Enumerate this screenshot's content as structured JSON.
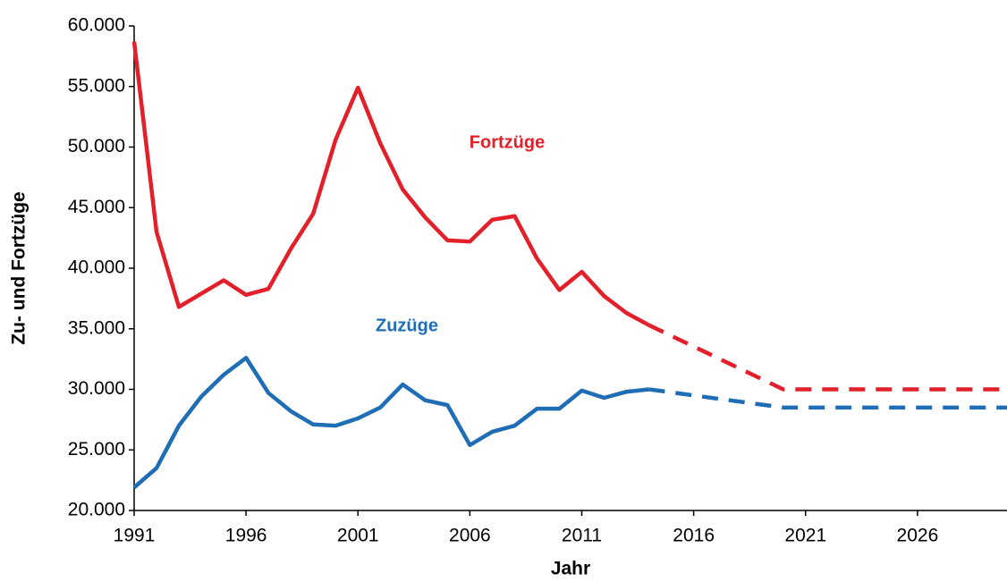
{
  "chart_data": {
    "type": "line",
    "x": [
      1991,
      1992,
      1993,
      1994,
      1995,
      1996,
      1997,
      1998,
      1999,
      2000,
      2001,
      2002,
      2003,
      2004,
      2005,
      2006,
      2007,
      2008,
      2009,
      2010,
      2011,
      2012,
      2013,
      2014,
      2020,
      2030
    ],
    "series": [
      {
        "name": "Fortzüge",
        "color": "#e3202a",
        "values": [
          58700,
          43000,
          36800,
          37900,
          39000,
          37800,
          38300,
          41600,
          44500,
          50600,
          54900,
          50300,
          46500,
          44200,
          42300,
          42200,
          44000,
          44300,
          40800,
          38200,
          39700,
          37700,
          36300,
          35300,
          30000,
          30000
        ]
      },
      {
        "name": "Zuzüge",
        "color": "#1f6db5",
        "values": [
          21900,
          23500,
          27000,
          29400,
          31200,
          32600,
          29700,
          28200,
          27100,
          27000,
          27600,
          28500,
          30400,
          29100,
          28700,
          25400,
          26500,
          27000,
          28400,
          28400,
          29900,
          29300,
          29800,
          30000,
          28500,
          28500
        ]
      }
    ],
    "projection_start": 2014,
    "xlabel": "Jahr",
    "ylabel": "Zu- und Fortzüge",
    "xlim": [
      1991,
      2030
    ],
    "xticks": [
      1991,
      1996,
      2001,
      2006,
      2011,
      2016,
      2021,
      2026
    ],
    "ylim": [
      20000,
      60000
    ],
    "yticks": [
      {
        "value": 20000,
        "label": "20.000"
      },
      {
        "value": 25000,
        "label": "25.000"
      },
      {
        "value": 30000,
        "label": "30.000"
      },
      {
        "value": 35000,
        "label": "35.000"
      },
      {
        "value": 40000,
        "label": "40.000"
      },
      {
        "value": 45000,
        "label": "45.000"
      },
      {
        "value": 50000,
        "label": "50.000"
      },
      {
        "value": 55000,
        "label": "55.000"
      },
      {
        "value": 60000,
        "label": "60.000"
      }
    ]
  }
}
